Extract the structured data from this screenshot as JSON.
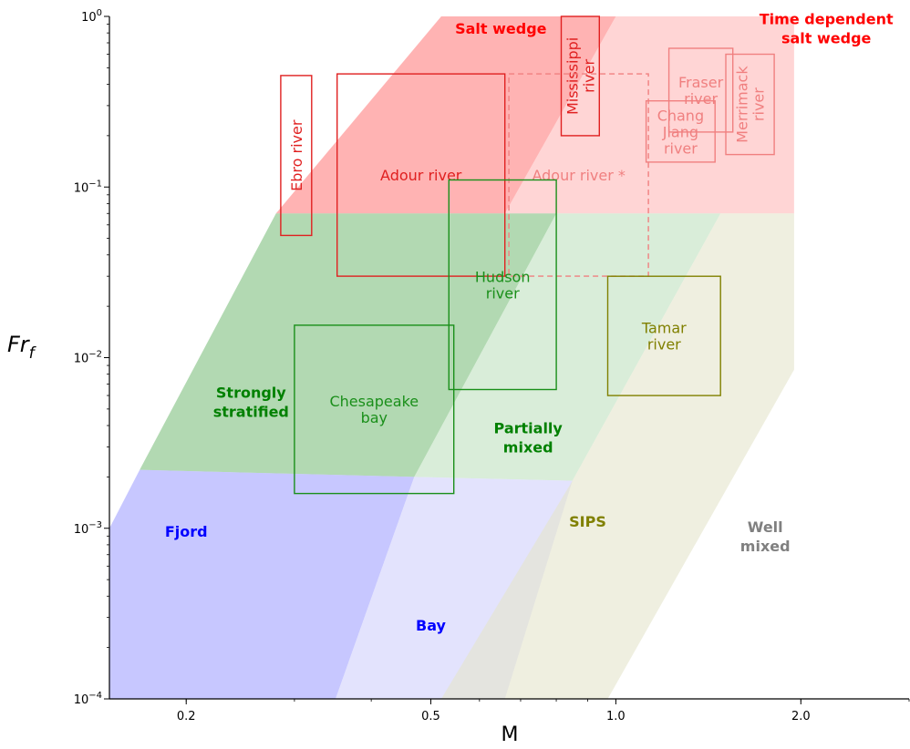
{
  "chart_data": {
    "type": "area",
    "title": "",
    "xlabel": "M",
    "ylabel": "Fr_f",
    "ylabel_main": "Fr",
    "ylabel_sub": "f",
    "xscale": "log",
    "yscale": "log",
    "xlim": [
      0.15,
      3.0
    ],
    "ylim": [
      0.0001,
      1.0
    ],
    "grid": false,
    "x_ticks": [
      {
        "value": 0.2,
        "label": "0.2"
      },
      {
        "value": 0.5,
        "label": "0.5"
      },
      {
        "value": 1.0,
        "label": "1.0"
      },
      {
        "value": 2.0,
        "label": "2.0"
      }
    ],
    "y_ticks": [
      {
        "value": 0.0001,
        "base": "10",
        "exp": "−4"
      },
      {
        "value": 0.001,
        "base": "10",
        "exp": "−3"
      },
      {
        "value": 0.01,
        "base": "10",
        "exp": "−2"
      },
      {
        "value": 0.1,
        "base": "10",
        "exp": "−1"
      },
      {
        "value": 1.0,
        "base": "10",
        "exp": "0"
      }
    ],
    "regions": [
      {
        "name": "Salt wedge",
        "color": "#ff8080",
        "opacity": 0.6,
        "polygon": [
          [
            0.28,
            0.07
          ],
          [
            0.66,
            0.07
          ],
          [
            1.0,
            1.0
          ],
          [
            0.52,
            1.0
          ]
        ]
      },
      {
        "name": "Time dependent salt wedge",
        "color": "#ffb3b3",
        "opacity": 0.55,
        "polygon": [
          [
            0.66,
            0.07
          ],
          [
            1.95,
            0.07
          ],
          [
            1.95,
            1.0
          ],
          [
            1.0,
            1.0
          ]
        ]
      },
      {
        "name": "Strongly stratified",
        "color": "#7fbf7f",
        "opacity": 0.6,
        "polygon": [
          [
            0.168,
            0.0022
          ],
          [
            0.47,
            0.002
          ],
          [
            0.8,
            0.07
          ],
          [
            0.28,
            0.07
          ]
        ]
      },
      {
        "name": "Partially mixed",
        "color": "#b9dfb9",
        "opacity": 0.55,
        "polygon": [
          [
            0.47,
            0.002
          ],
          [
            0.85,
            0.0019
          ],
          [
            1.48,
            0.07
          ],
          [
            0.8,
            0.07
          ]
        ]
      },
      {
        "name": "Fjord",
        "color": "#9999ff",
        "opacity": 0.55,
        "polygon": [
          [
            0.15,
            0.001
          ],
          [
            0.168,
            0.0022
          ],
          [
            0.47,
            0.002
          ],
          [
            0.35,
            0.0001
          ],
          [
            0.15,
            0.0001
          ]
        ]
      },
      {
        "name": "Bay",
        "color": "#d4d4fc",
        "opacity": 0.65,
        "polygon": [
          [
            0.35,
            0.0001
          ],
          [
            0.47,
            0.002
          ],
          [
            0.85,
            0.0019
          ],
          [
            0.66,
            0.0001
          ]
        ]
      },
      {
        "name": "SIPS",
        "color": "#e4e4cc",
        "opacity": 0.6,
        "polygon": [
          [
            0.52,
            0.0001
          ],
          [
            0.85,
            0.0019
          ],
          [
            1.48,
            0.07
          ],
          [
            1.95,
            0.07
          ],
          [
            1.95,
            0.0085
          ],
          [
            0.97,
            0.0001
          ]
        ]
      }
    ],
    "region_labels": [
      {
        "lines": [
          "Salt wedge"
        ],
        "x": 0.65,
        "y": 0.85,
        "color": "#ff0000"
      },
      {
        "lines": [
          "Time dependent",
          "salt wedge"
        ],
        "x": 2.2,
        "y": 0.85,
        "color": "#ff0000"
      },
      {
        "lines": [
          "Strongly",
          "stratified"
        ],
        "x": 0.255,
        "y": 0.0055,
        "color": "#008000"
      },
      {
        "lines": [
          "Partially",
          "mixed"
        ],
        "x": 0.72,
        "y": 0.0034,
        "color": "#008000"
      },
      {
        "lines": [
          "Fjord"
        ],
        "x": 0.2,
        "y": 0.00096,
        "color": "#0000ff"
      },
      {
        "lines": [
          "Bay"
        ],
        "x": 0.5,
        "y": 0.00027,
        "color": "#0000ff"
      },
      {
        "lines": [
          "SIPS"
        ],
        "x": 0.9,
        "y": 0.0011,
        "color": "#808000"
      },
      {
        "lines": [
          "Well",
          "mixed"
        ],
        "x": 1.75,
        "y": 0.0009,
        "color": "#808080"
      }
    ],
    "estuaries": [
      {
        "name": "Ebro river",
        "label_lines": [
          "Ebro river"
        ],
        "rotated": true,
        "x_range": [
          0.285,
          0.32
        ],
        "y_range": [
          0.052,
          0.45
        ],
        "color": "#e02020",
        "text_color": "#e02020",
        "dashed": false,
        "opacity": 1
      },
      {
        "name": "Adour river",
        "label_lines": [
          "Adour river"
        ],
        "rotated": false,
        "x_range": [
          0.352,
          0.66
        ],
        "y_range": [
          0.03,
          0.46
        ],
        "color": "#e02020",
        "text_color": "#e02020",
        "dashed": false,
        "opacity": 1
      },
      {
        "name": "Mississippi river",
        "label_lines": [
          "Mississippi",
          "river"
        ],
        "rotated": true,
        "x_range": [
          0.815,
          0.94
        ],
        "y_range": [
          0.2,
          1.0
        ],
        "color": "#e02020",
        "text_color": "#e02020",
        "dashed": false,
        "opacity": 1
      },
      {
        "name": "Adour river *",
        "label_lines": [
          "Adour river *"
        ],
        "rotated": false,
        "x_range": [
          0.67,
          1.13
        ],
        "y_range": [
          0.03,
          0.46
        ],
        "color": "#f08080",
        "text_color": "#f08080",
        "dashed": true,
        "opacity": 1
      },
      {
        "name": "Fraser river",
        "label_lines": [
          "Fraser",
          "river"
        ],
        "rotated": false,
        "x_range": [
          1.22,
          1.55
        ],
        "y_range": [
          0.21,
          0.65
        ],
        "color": "#f08080",
        "text_color": "#f08080",
        "dashed": false,
        "opacity": 1
      },
      {
        "name": "Merrimack river",
        "label_lines": [
          "Merrimack",
          "river"
        ],
        "rotated": true,
        "x_range": [
          1.51,
          1.81
        ],
        "y_range": [
          0.155,
          0.6
        ],
        "color": "#f08080",
        "text_color": "#f08080",
        "dashed": false,
        "opacity": 1
      },
      {
        "name": "Chang Jiang river",
        "label_lines": [
          "Chang",
          "Jiang",
          "river"
        ],
        "rotated": false,
        "x_range": [
          1.12,
          1.45
        ],
        "y_range": [
          0.14,
          0.32
        ],
        "color": "#f08080",
        "text_color": "#f08080",
        "dashed": false,
        "opacity": 1
      },
      {
        "name": "Hudson river",
        "label_lines": [
          "Hudson",
          "river"
        ],
        "rotated": false,
        "x_range": [
          0.535,
          0.8
        ],
        "y_range": [
          0.0065,
          0.11
        ],
        "color": "#1a8f1a",
        "text_color": "#1a8f1a",
        "dashed": false,
        "opacity": 1
      },
      {
        "name": "Chesapeake bay",
        "label_lines": [
          "Chesapeake",
          "bay"
        ],
        "rotated": false,
        "x_range": [
          0.3,
          0.545
        ],
        "y_range": [
          0.0016,
          0.0155
        ],
        "color": "#1a8f1a",
        "text_color": "#1a8f1a",
        "dashed": false,
        "opacity": 1
      },
      {
        "name": "Tamar river",
        "label_lines": [
          "Tamar",
          "river"
        ],
        "rotated": false,
        "x_range": [
          0.97,
          1.48
        ],
        "y_range": [
          0.006,
          0.03
        ],
        "color": "#808000",
        "text_color": "#808000",
        "dashed": false,
        "opacity": 1
      }
    ]
  }
}
